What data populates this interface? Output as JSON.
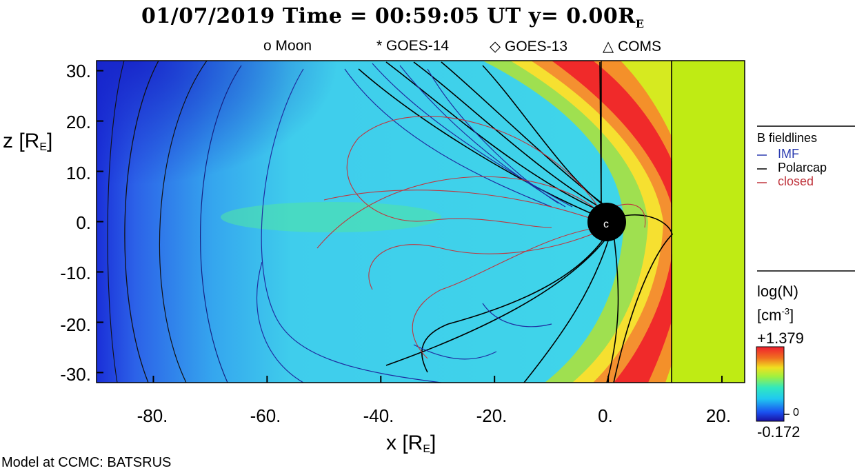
{
  "header": {
    "title_prefix": "01/07/2019 Time = 00:59:05 UT y= 0.00R",
    "title_sub": "E"
  },
  "satellites": [
    {
      "symbol": "o",
      "label": "Moon"
    },
    {
      "symbol": "*",
      "label": "GOES-14"
    },
    {
      "symbol": "◇",
      "label": "GOES-13"
    },
    {
      "symbol": "△",
      "label": "COMS"
    }
  ],
  "legend": {
    "title": "B fieldlines",
    "items": [
      {
        "label": "IMF",
        "color": "#2a3bb0"
      },
      {
        "label": "Polarcap",
        "color": "#000000"
      },
      {
        "label": "closed",
        "color": "#c0363e"
      }
    ]
  },
  "colorbar": {
    "title": "log(N)",
    "unit": "[cm",
    "unit_sup": "-3",
    "unit_close": "]",
    "max": "+1.379",
    "min": "-0.172",
    "zero_mark": "0"
  },
  "credit": "Model at CCMC: BATSRUS",
  "chart_data": {
    "type": "heatmap",
    "xlabel": "x [R",
    "xlabel_sub": "E",
    "xlabel_close": "]",
    "ylabel": "z [R",
    "ylabel_sub": "E",
    "ylabel_close": "]",
    "xlim": [
      -90,
      24
    ],
    "ylim": [
      -32,
      32
    ],
    "x_ticks": [
      "-80.",
      "-60.",
      "-40.",
      "-20.",
      "0.",
      "20."
    ],
    "x_tick_values": [
      -80,
      -60,
      -40,
      -20,
      0,
      20
    ],
    "y_ticks": [
      "30.",
      "20.",
      "10.",
      "0.",
      "-10.",
      "-20.",
      "-30."
    ],
    "y_tick_values": [
      30,
      20,
      10,
      0,
      -10,
      -20,
      -30
    ],
    "colorscale_range": [
      -0.172,
      1.379
    ],
    "earth_position": [
      0,
      0
    ],
    "vertical_lines_x": [
      -1,
      11.5
    ]
  }
}
